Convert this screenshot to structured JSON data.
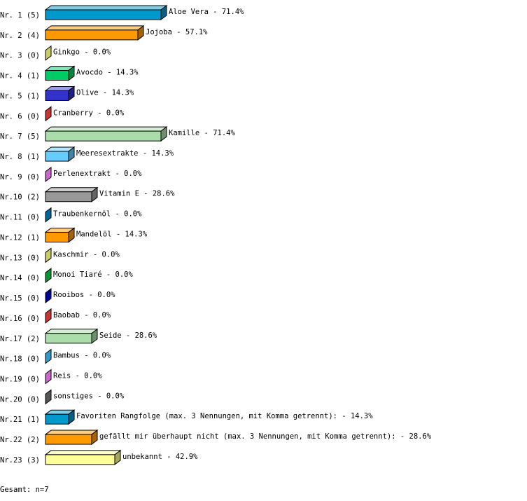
{
  "chart_data": {
    "type": "bar",
    "orientation": "horizontal",
    "style": "3d",
    "rows": [
      {
        "rank": "Nr. 1",
        "count": 5,
        "label": "Aloe Vera",
        "percent": "71.4%",
        "color": "#0099cc"
      },
      {
        "rank": "Nr. 2",
        "count": 4,
        "label": "Jojoba",
        "percent": "57.1%",
        "color": "#ff9900"
      },
      {
        "rank": "Nr. 3",
        "count": 0,
        "label": "Ginkgo",
        "percent": "0.0%",
        "color": "#cccc66"
      },
      {
        "rank": "Nr. 4",
        "count": 1,
        "label": "Avocdo",
        "percent": "14.3%",
        "color": "#00cc66"
      },
      {
        "rank": "Nr. 5",
        "count": 1,
        "label": "Olive",
        "percent": "14.3%",
        "color": "#3333cc"
      },
      {
        "rank": "Nr. 6",
        "count": 0,
        "label": "Cranberry",
        "percent": "0.0%",
        "color": "#cc3333"
      },
      {
        "rank": "Nr. 7",
        "count": 5,
        "label": "Kamille",
        "percent": "71.4%",
        "color": "#aaddaa"
      },
      {
        "rank": "Nr. 8",
        "count": 1,
        "label": "Meeresextrakte",
        "percent": "14.3%",
        "color": "#66ccff"
      },
      {
        "rank": "Nr. 9",
        "count": 0,
        "label": "Perlenextrakt",
        "percent": "0.0%",
        "color": "#cc66cc"
      },
      {
        "rank": "Nr.10",
        "count": 2,
        "label": "Vitamin E",
        "percent": "28.6%",
        "color": "#999999"
      },
      {
        "rank": "Nr.11",
        "count": 0,
        "label": "Traubenkernöl",
        "percent": "0.0%",
        "color": "#006699"
      },
      {
        "rank": "Nr.12",
        "count": 1,
        "label": "Mandelöl",
        "percent": "14.3%",
        "color": "#ff9900"
      },
      {
        "rank": "Nr.13",
        "count": 0,
        "label": "Kaschmir",
        "percent": "0.0%",
        "color": "#cccc66"
      },
      {
        "rank": "Nr.14",
        "count": 0,
        "label": "Monoi Tiaré",
        "percent": "0.0%",
        "color": "#009933"
      },
      {
        "rank": "Nr.15",
        "count": 0,
        "label": "Rooibos",
        "percent": "0.0%",
        "color": "#000099"
      },
      {
        "rank": "Nr.16",
        "count": 0,
        "label": "Baobab",
        "percent": "0.0%",
        "color": "#cc3333"
      },
      {
        "rank": "Nr.17",
        "count": 2,
        "label": "Seide",
        "percent": "28.6%",
        "color": "#aaddaa"
      },
      {
        "rank": "Nr.18",
        "count": 0,
        "label": "Bambus",
        "percent": "0.0%",
        "color": "#3399cc"
      },
      {
        "rank": "Nr.19",
        "count": 0,
        "label": "Reis",
        "percent": "0.0%",
        "color": "#cc66cc"
      },
      {
        "rank": "Nr.20",
        "count": 0,
        "label": "sonstiges",
        "percent": "0.0%",
        "color": "#555555"
      },
      {
        "rank": "Nr.21",
        "count": 1,
        "label": "Favoriten Rangfolge (max. 3 Nennungen, mit Komma getrennt):",
        "percent": "14.3%",
        "color": "#0099cc"
      },
      {
        "rank": "Nr.22",
        "count": 2,
        "label": "gefällt mir überhaupt nicht (max. 3 Nennungen, mit Komma getrennt):",
        "percent": "28.6%",
        "color": "#ff9900"
      },
      {
        "rank": "Nr.23",
        "count": 3,
        "label": "unbekannt",
        "percent": "42.9%",
        "color": "#ffff99"
      }
    ],
    "footer": "Gesamt: n=7"
  }
}
